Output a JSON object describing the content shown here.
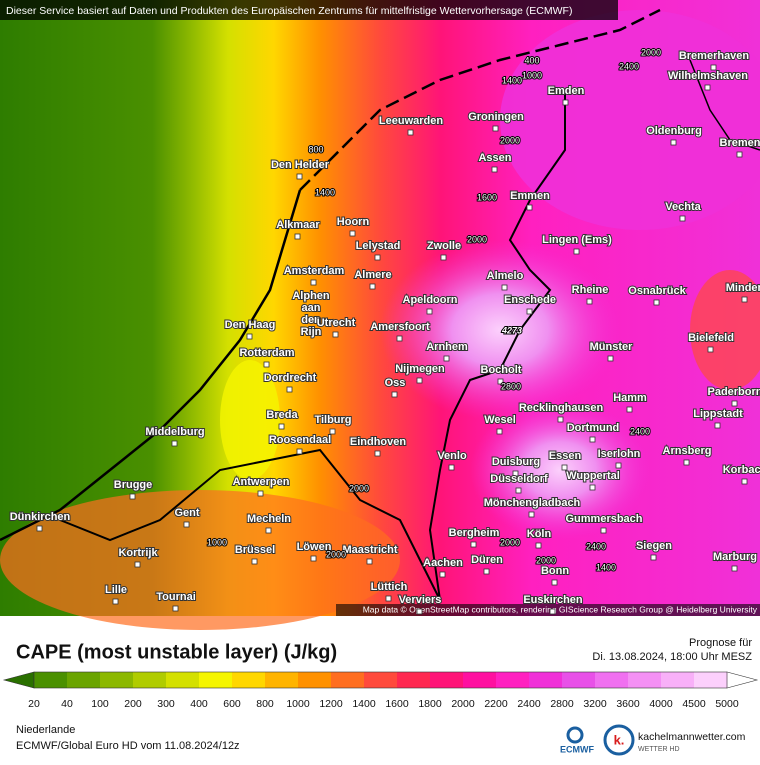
{
  "header": "Dieser Service basiert auf Daten und Produkten des Europäischen Zentrums für mittelfristige Wettervorhersage (ECMWF)",
  "attribution": "Map data © OpenStreetMap contributors, rendering GIScience Research Group @ Heidelberg University",
  "title": "CAPE (most unstable layer) (J/kg)",
  "forecast_label": "Prognose für",
  "forecast_time": "Di. 13.08.2024, 18:00 Uhr MESZ",
  "region": "Niederlande",
  "model_run": "ECMWF/Global Euro HD vom  11.08.2024/12z",
  "logos": [
    "ECMWF",
    "kachelmannwetter.com",
    "WETTER HD"
  ],
  "cities": [
    "Bremerhaven",
    "Wilhelmshaven",
    "Emden",
    "Leeuwarden",
    "Groningen",
    "Oldenburg",
    "Bremen",
    "Den Helder",
    "Assen",
    "Emmen",
    "Vechta",
    "Alkmaar",
    "Hoorn",
    "Lingen (Ems)",
    "Lelystad",
    "Zwolle",
    "Amsterdam",
    "Almere",
    "Almelo",
    "Alphen aan den Rijn",
    "Apeldoorn",
    "Enschede",
    "Rheine",
    "Osnabrück",
    "Minden",
    "Den Haag",
    "Utrecht",
    "Amersfoort",
    "Bielefeld",
    "Rotterdam",
    "Arnhem",
    "Münster",
    "Hamm",
    "Dordrecht",
    "Nijmegen",
    "Oss",
    "Bocholt",
    "Paderborn",
    "Recklinghausen",
    "Lippstadt",
    "Middelburg",
    "Breda",
    "Tilburg",
    "Wesel",
    "Dortmund",
    "Roosendaal",
    "Eindhoven",
    "Arnsberg",
    "Venlo",
    "Essen",
    "Iserlohn",
    "Duisburg",
    "Korbach",
    "Wuppertal",
    "Antwerpen",
    "Brugge",
    "Düsseldorf",
    "Mönchengladbach",
    "Dünkirchen",
    "Gent",
    "Mecheln",
    "Gummersbach",
    "Bergheim",
    "Köln",
    "Kortrijk",
    "Brüssel",
    "Löwen",
    "Maastricht",
    "Siegen",
    "Marburg",
    "Aachen",
    "Düren",
    "Bonn",
    "Lille",
    "Tournai",
    "Lüttich",
    "Verviers",
    "Euskirchen"
  ],
  "contour_labels": [
    400,
    2000,
    2400,
    1400,
    1000,
    800,
    1400,
    2000,
    1600,
    2000,
    4273,
    2800,
    2400,
    2000,
    1000,
    2000,
    2000,
    2400,
    1400,
    2000
  ],
  "legend": {
    "ticks": [
      20,
      40,
      100,
      200,
      300,
      400,
      600,
      800,
      1000,
      1200,
      1400,
      1600,
      1800,
      2000,
      2200,
      2400,
      2800,
      3200,
      3600,
      4000,
      4500,
      5000
    ],
    "colors": [
      "#4a9000",
      "#6aa400",
      "#8cb800",
      "#b0cc00",
      "#d4e000",
      "#f5f500",
      "#ffd700",
      "#ffb400",
      "#ff9100",
      "#ff6e20",
      "#ff4a3c",
      "#ff2850",
      "#ff1478",
      "#ff10a0",
      "#ff20c0",
      "#f030d8",
      "#e850e8",
      "#f070f0",
      "#f490f4",
      "#f8b0f8",
      "#fcd0fc"
    ],
    "under_color": "#2a7000",
    "over_color": "#ffffff"
  }
}
